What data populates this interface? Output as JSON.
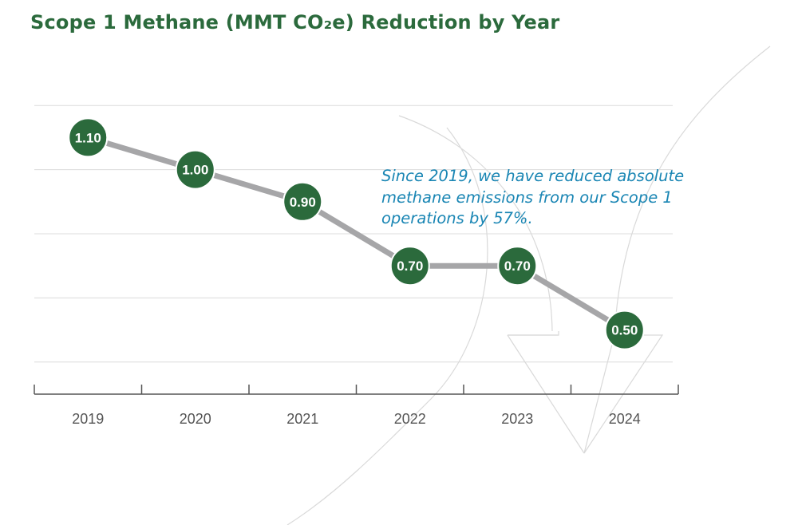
{
  "chart_data": {
    "type": "line",
    "title": "Scope 1 Methane (MMT CO₂e) Reduction by Year",
    "categories": [
      "2019",
      "2020",
      "2021",
      "2022",
      "2023",
      "2024"
    ],
    "series": [
      {
        "name": "Scope 1 Methane (MMT CO₂e)",
        "values": [
          1.1,
          1.0,
          0.9,
          0.7,
          0.7,
          0.5
        ],
        "labels": [
          "1.10",
          "1.00",
          "0.90",
          "0.70",
          "0.70",
          "0.50"
        ]
      }
    ],
    "xlabel": "",
    "ylabel": "",
    "ylim": [
      0.3,
      1.3
    ],
    "grid": true,
    "annotation": "Since 2019, we have reduced absolute methane emissions from our Scope 1 operations by 57%.",
    "colors": {
      "title": "#2b6a3c",
      "marker": "#2b6a3c",
      "line": "#a6a6a8",
      "annotation": "#1a86b4"
    }
  }
}
